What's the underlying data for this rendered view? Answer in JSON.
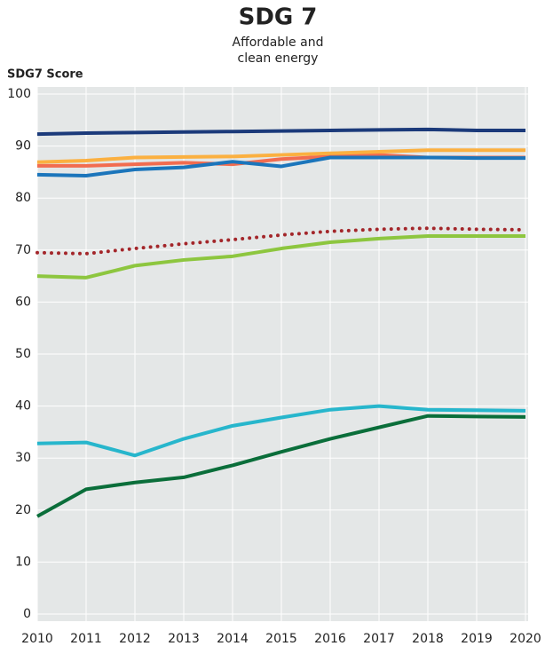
{
  "chart_data": {
    "type": "line",
    "title": "SDG 7",
    "subtitle": [
      "Affordable and",
      "clean energy"
    ],
    "y_label": "SDG7 Score",
    "x": [
      2010,
      2011,
      2012,
      2013,
      2014,
      2015,
      2016,
      2017,
      2018,
      2019,
      2020
    ],
    "xlim": [
      2010,
      2020
    ],
    "xticks": [
      2010,
      2011,
      2012,
      2013,
      2014,
      2015,
      2016,
      2017,
      2018,
      2019,
      2020
    ],
    "ylim": [
      0,
      100
    ],
    "yticks": [
      0,
      10,
      20,
      30,
      40,
      50,
      60,
      70,
      80,
      90,
      100
    ],
    "grid": true,
    "series": [
      {
        "color": "#0a6e3a",
        "style": "solid",
        "values": [
          18.8,
          24.0,
          25.3,
          26.3,
          28.6,
          31.2,
          33.7,
          35.9,
          38.1,
          38.0,
          37.9
        ]
      },
      {
        "color": "#27b6cc",
        "style": "solid",
        "values": [
          32.8,
          33.0,
          30.5,
          33.7,
          36.2,
          37.8,
          39.3,
          40.0,
          39.3,
          39.2,
          39.1
        ]
      },
      {
        "color": "#8dc63f",
        "style": "solid",
        "values": [
          65.0,
          64.7,
          67.0,
          68.1,
          68.8,
          70.3,
          71.5,
          72.2,
          72.7,
          72.7,
          72.7
        ]
      },
      {
        "color": "#a3262a",
        "style": "dotted",
        "values": [
          69.5,
          69.3,
          70.3,
          71.2,
          72.0,
          72.9,
          73.6,
          74.0,
          74.2,
          74.0,
          73.9
        ]
      },
      {
        "color": "#f26c4f",
        "style": "solid",
        "values": [
          86.2,
          86.2,
          86.5,
          86.8,
          86.5,
          87.5,
          88.0,
          88.3,
          87.8,
          87.8,
          87.8
        ]
      },
      {
        "color": "#fbb040",
        "style": "solid",
        "values": [
          86.9,
          87.2,
          87.8,
          87.9,
          88.0,
          88.3,
          88.6,
          88.9,
          89.2,
          89.2,
          89.2
        ]
      },
      {
        "color": "#1b75bb",
        "style": "solid",
        "values": [
          84.5,
          84.3,
          85.5,
          85.9,
          87.0,
          86.1,
          87.8,
          87.8,
          87.8,
          87.7,
          87.7
        ]
      },
      {
        "color": "#1b3a7a",
        "style": "solid",
        "values": [
          92.3,
          92.5,
          92.6,
          92.7,
          92.8,
          92.9,
          93.0,
          93.1,
          93.2,
          93.0,
          93.0
        ]
      }
    ]
  }
}
